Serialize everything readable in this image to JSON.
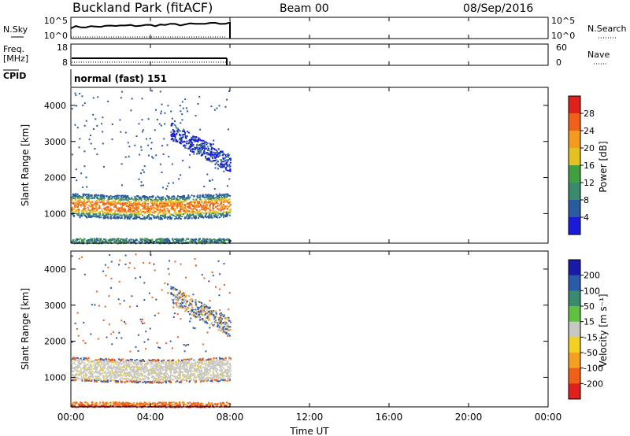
{
  "header": {
    "title": "Buckland Park (fitACF)",
    "beam": "Beam 00",
    "date": "08/Sep/2016"
  },
  "nsky_panel": {
    "label": "N.Sky",
    "ticks_left": [
      "10^5",
      "10^0"
    ],
    "ticks_right": [
      "10^5",
      "10^0"
    ],
    "right_label": "N.Search"
  },
  "freq_panel": {
    "label_line1": "Freq.",
    "label_line2": "[MHz]",
    "ticks_left": [
      "18",
      "8"
    ],
    "ticks_right": [
      "60",
      "0"
    ],
    "right_label": "Nave"
  },
  "cpid_panel": {
    "label": "CPID",
    "text": "normal (fast) 151"
  },
  "power_panel": {
    "ylabel": "Slant Range [km]",
    "colorbar_label": "Power [dB]",
    "colorbar_ticks": [
      "28",
      "24",
      "20",
      "16",
      "12",
      "8",
      "4"
    ],
    "colorbar_colors": [
      "#e0201c",
      "#f06018",
      "#f49a20",
      "#e4c020",
      "#40a040",
      "#3a8a6e",
      "#2a5aa0",
      "#1a1ad8"
    ]
  },
  "velocity_panel": {
    "ylabel": "Slant Range [km]",
    "colorbar_label": "Velocity [m s⁻¹]",
    "colorbar_ticks": [
      "200",
      "100",
      "50",
      "15",
      "-15",
      "-50",
      "-100",
      "-200"
    ],
    "colorbar_colors": [
      "#1a1aa8",
      "#2a5aa8",
      "#3a8a6e",
      "#60c040",
      "#c8c8c0",
      "#f4d020",
      "#f4a020",
      "#f06018",
      "#e0201c"
    ]
  },
  "chart_data": [
    {
      "type": "heatmap",
      "title": "Power",
      "xlabel": "Time UT",
      "ylabel": "Slant Range [km]",
      "xticks": [
        "00:00",
        "04:00",
        "08:00",
        "12:00",
        "16:00",
        "20:00",
        "00:00"
      ],
      "yticks": [
        1000,
        2000,
        3000,
        4000
      ],
      "xlim_hours": [
        0,
        24
      ],
      "ylim_km": [
        180,
        4500
      ],
      "data_extent_hours": [
        0,
        8
      ],
      "bands": [
        {
          "range_km": [
            950,
            1650
          ],
          "power_db": 18,
          "time_hours": [
            0,
            8
          ]
        },
        {
          "range_km": [
            180,
            320
          ],
          "power_db": 8,
          "time_hours": [
            0,
            8
          ]
        },
        {
          "range_km": [
            2100,
            3400
          ],
          "power_db": 8,
          "time_hours": [
            5,
            8
          ]
        }
      ]
    },
    {
      "type": "heatmap",
      "title": "Velocity",
      "xlabel": "Time UT",
      "ylabel": "Slant Range [km]",
      "xticks": [
        "00:00",
        "04:00",
        "08:00",
        "12:00",
        "16:00",
        "20:00",
        "00:00"
      ],
      "yticks": [
        1000,
        2000,
        3000,
        4000
      ],
      "xlim_hours": [
        0,
        24
      ],
      "ylim_km": [
        180,
        4500
      ],
      "data_extent_hours": [
        0,
        8
      ],
      "bands": [
        {
          "range_km": [
            950,
            1650
          ],
          "velocity_ms": 0,
          "time_hours": [
            0,
            8
          ]
        },
        {
          "range_km": [
            180,
            320
          ],
          "velocity_ms": -100,
          "time_hours": [
            0,
            8
          ]
        },
        {
          "range_km": [
            2100,
            3400
          ],
          "velocity_ms": -30,
          "time_hours": [
            5,
            8
          ]
        }
      ]
    }
  ]
}
